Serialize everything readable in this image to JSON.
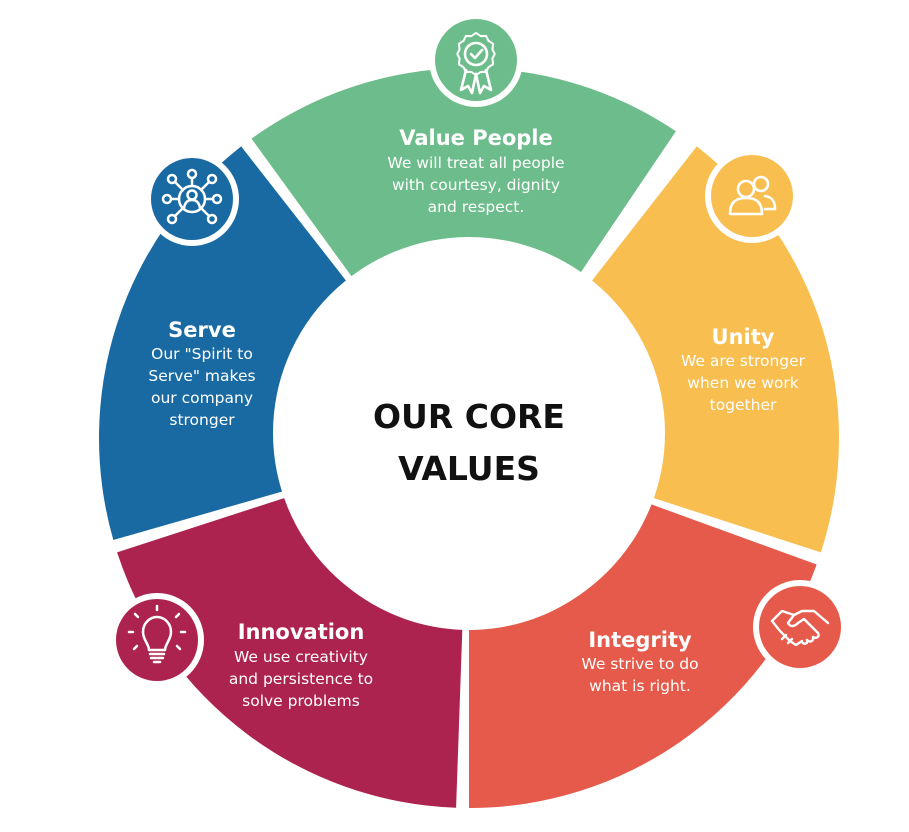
{
  "center": {
    "line1": "OUR CORE",
    "line2": "VALUES"
  },
  "segments": [
    {
      "key": "value-people",
      "title": "Value People",
      "lines": [
        "We will treat all people",
        "with courtesy, dignity",
        "and respect."
      ],
      "color": "#6cbd8b",
      "icon": "ribbon-award-icon"
    },
    {
      "key": "unity",
      "title": "Unity",
      "lines": [
        "We are stronger",
        "when we work",
        "together"
      ],
      "color": "#f8be4f",
      "icon": "users-group-icon"
    },
    {
      "key": "integrity",
      "title": "Integrity",
      "lines": [
        "We strive to do",
        "what is right."
      ],
      "color": "#e55a4a",
      "icon": "handshake-icon"
    },
    {
      "key": "innovation",
      "title": "Innovation",
      "lines": [
        "We use creativity",
        "and persistence to",
        "solve problems"
      ],
      "color": "#ad2350",
      "icon": "lightbulb-icon"
    },
    {
      "key": "serve",
      "title": "Serve",
      "lines": [
        "Our \"Spirit to",
        "Serve\" makes",
        "our company",
        "stronger"
      ],
      "color": "#196aa3",
      "icon": "network-person-icon"
    }
  ]
}
